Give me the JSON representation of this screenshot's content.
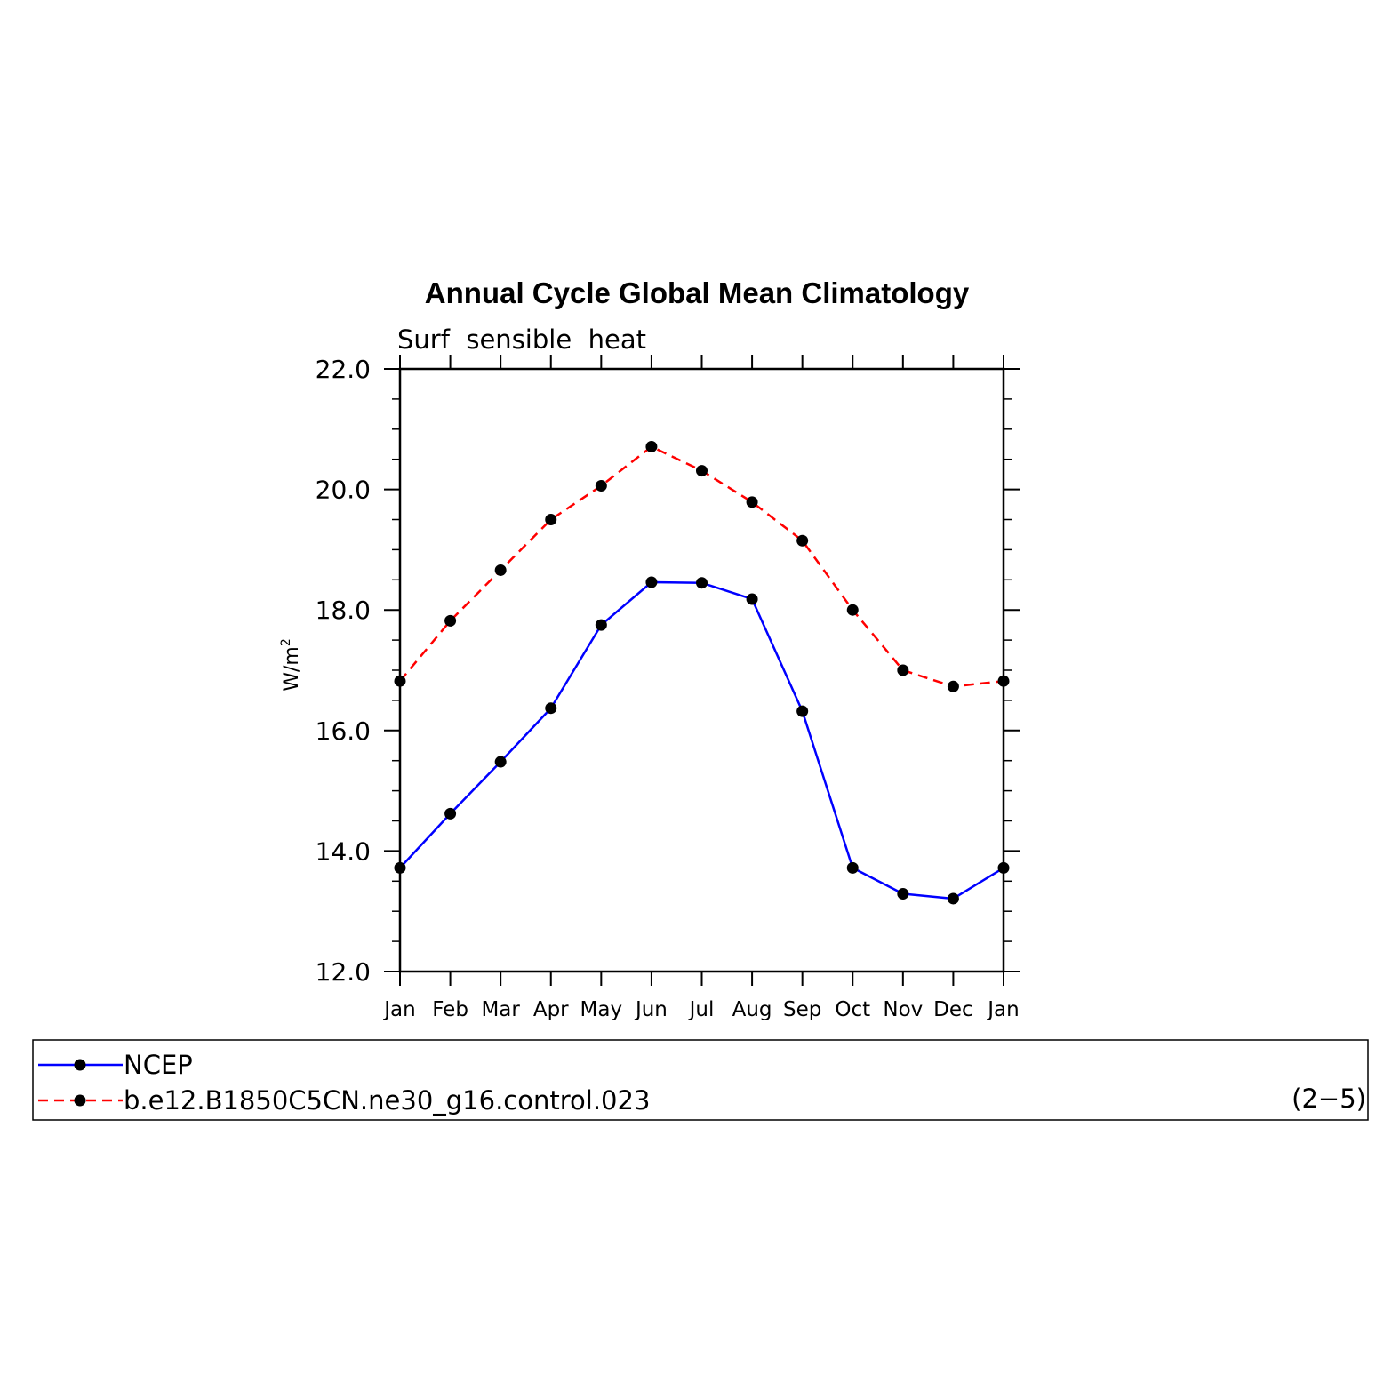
{
  "chart_data": {
    "type": "line",
    "title": "Annual Cycle Global Mean Climatology",
    "subtitle": "Surf  sensible  heat",
    "ylabel_base": "W/m",
    "ylabel_sup": "2",
    "categories": [
      "Jan",
      "Feb",
      "Mar",
      "Apr",
      "May",
      "Jun",
      "Jul",
      "Aug",
      "Sep",
      "Oct",
      "Nov",
      "Dec",
      "Jan"
    ],
    "yticks": [
      "12.0",
      "14.0",
      "16.0",
      "18.0",
      "20.0",
      "22.0"
    ],
    "ylim": [
      12.0,
      22.0
    ],
    "series": [
      {
        "name": "NCEP",
        "color": "#0000ff",
        "dash": "solid",
        "values": [
          13.72,
          14.62,
          15.48,
          16.37,
          17.75,
          18.46,
          18.45,
          18.18,
          16.32,
          13.72,
          13.29,
          13.21,
          13.72
        ]
      },
      {
        "name": "b.e12.B1850C5CN.ne30_g16.control.023",
        "color": "#ff0000",
        "dash": "dashed",
        "values": [
          16.82,
          17.82,
          18.66,
          19.5,
          20.06,
          20.71,
          20.31,
          19.79,
          19.15,
          18.0,
          17.0,
          16.73,
          16.82
        ]
      }
    ],
    "legend_position": "bottom",
    "grid": false
  },
  "legend_tag": "(2−5)"
}
